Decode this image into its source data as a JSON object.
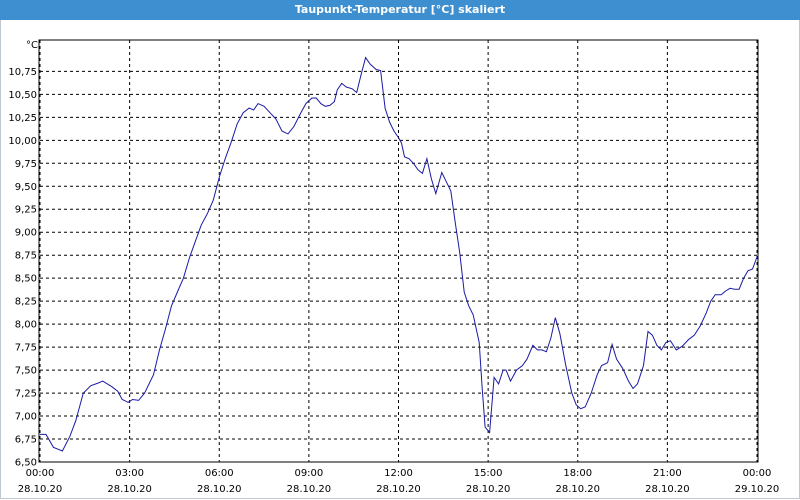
{
  "window": {
    "title": "Taupunkt-Temperatur [°C] skaliert"
  },
  "chart_data": {
    "type": "line",
    "ylabel": "°C",
    "ylim": [
      6.5,
      10.95
    ],
    "xlim_hours": [
      0,
      24
    ],
    "grid": true,
    "line_color": "#1a1aa6",
    "y_ticks": [
      "6,50",
      "6,75",
      "7,00",
      "7,25",
      "7,50",
      "7,75",
      "8,00",
      "8,25",
      "8,50",
      "8,75",
      "9,00",
      "9,25",
      "9,50",
      "9,75",
      "10,00",
      "10,25",
      "10,50",
      "10,75"
    ],
    "x_ticks": [
      {
        "time": "00:00",
        "date": "28.10.20"
      },
      {
        "time": "03:00",
        "date": "28.10.20"
      },
      {
        "time": "06:00",
        "date": "28.10.20"
      },
      {
        "time": "09:00",
        "date": "28.10.20"
      },
      {
        "time": "12:00",
        "date": "28.10.20"
      },
      {
        "time": "15:00",
        "date": "28.10.20"
      },
      {
        "time": "18:00",
        "date": "28.10.20"
      },
      {
        "time": "21:00",
        "date": "28.10.20"
      },
      {
        "time": "00:00",
        "date": "29.10.20"
      }
    ],
    "series": [
      {
        "points": [
          [
            0.0,
            6.8
          ],
          [
            0.2,
            6.8
          ],
          [
            0.45,
            6.66
          ],
          [
            0.75,
            6.62
          ],
          [
            1.0,
            6.78
          ],
          [
            1.2,
            6.95
          ],
          [
            1.45,
            7.25
          ],
          [
            1.7,
            7.33
          ],
          [
            1.95,
            7.36
          ],
          [
            2.1,
            7.38
          ],
          [
            2.4,
            7.32
          ],
          [
            2.6,
            7.27
          ],
          [
            2.75,
            7.18
          ],
          [
            2.95,
            7.15
          ],
          [
            3.1,
            7.18
          ],
          [
            3.3,
            7.17
          ],
          [
            3.5,
            7.25
          ],
          [
            3.8,
            7.45
          ],
          [
            4.0,
            7.72
          ],
          [
            4.2,
            7.95
          ],
          [
            4.4,
            8.2
          ],
          [
            4.6,
            8.35
          ],
          [
            4.8,
            8.5
          ],
          [
            5.0,
            8.72
          ],
          [
            5.2,
            8.9
          ],
          [
            5.4,
            9.08
          ],
          [
            5.6,
            9.2
          ],
          [
            5.8,
            9.35
          ],
          [
            6.0,
            9.6
          ],
          [
            6.2,
            9.8
          ],
          [
            6.4,
            9.98
          ],
          [
            6.6,
            10.18
          ],
          [
            6.8,
            10.3
          ],
          [
            7.0,
            10.35
          ],
          [
            7.15,
            10.33
          ],
          [
            7.3,
            10.4
          ],
          [
            7.5,
            10.37
          ],
          [
            7.7,
            10.3
          ],
          [
            7.9,
            10.23
          ],
          [
            8.1,
            10.1
          ],
          [
            8.3,
            10.07
          ],
          [
            8.5,
            10.15
          ],
          [
            8.7,
            10.28
          ],
          [
            8.9,
            10.4
          ],
          [
            9.1,
            10.46
          ],
          [
            9.25,
            10.46
          ],
          [
            9.4,
            10.4
          ],
          [
            9.55,
            10.37
          ],
          [
            9.7,
            10.38
          ],
          [
            9.85,
            10.42
          ],
          [
            9.95,
            10.55
          ],
          [
            10.1,
            10.62
          ],
          [
            10.25,
            10.58
          ],
          [
            10.45,
            10.56
          ],
          [
            10.6,
            10.52
          ],
          [
            10.75,
            10.72
          ],
          [
            10.9,
            10.9
          ],
          [
            11.05,
            10.83
          ],
          [
            11.25,
            10.77
          ],
          [
            11.4,
            10.76
          ],
          [
            11.55,
            10.35
          ],
          [
            11.7,
            10.2
          ],
          [
            11.85,
            10.1
          ],
          [
            12.0,
            10.03
          ],
          [
            12.1,
            9.97
          ],
          [
            12.2,
            9.82
          ],
          [
            12.35,
            9.8
          ],
          [
            12.5,
            9.75
          ],
          [
            12.65,
            9.68
          ],
          [
            12.8,
            9.64
          ],
          [
            12.95,
            9.8
          ],
          [
            13.1,
            9.58
          ],
          [
            13.25,
            9.42
          ],
          [
            13.45,
            9.65
          ],
          [
            13.6,
            9.55
          ],
          [
            13.75,
            9.45
          ],
          [
            13.9,
            9.1
          ],
          [
            14.05,
            8.78
          ],
          [
            14.2,
            8.35
          ],
          [
            14.35,
            8.2
          ],
          [
            14.5,
            8.1
          ],
          [
            14.7,
            7.8
          ],
          [
            14.8,
            7.3
          ],
          [
            14.9,
            6.88
          ],
          [
            15.05,
            6.82
          ],
          [
            15.2,
            7.42
          ],
          [
            15.35,
            7.35
          ],
          [
            15.5,
            7.5
          ],
          [
            15.6,
            7.5
          ],
          [
            15.75,
            7.38
          ],
          [
            15.95,
            7.5
          ],
          [
            16.15,
            7.55
          ],
          [
            16.3,
            7.62
          ],
          [
            16.5,
            7.77
          ],
          [
            16.65,
            7.72
          ],
          [
            16.8,
            7.72
          ],
          [
            16.95,
            7.7
          ],
          [
            17.1,
            7.85
          ],
          [
            17.25,
            8.07
          ],
          [
            17.4,
            7.9
          ],
          [
            17.6,
            7.55
          ],
          [
            17.8,
            7.25
          ],
          [
            17.95,
            7.12
          ],
          [
            18.1,
            7.08
          ],
          [
            18.25,
            7.1
          ],
          [
            18.45,
            7.25
          ],
          [
            18.65,
            7.45
          ],
          [
            18.8,
            7.55
          ],
          [
            19.0,
            7.58
          ],
          [
            19.15,
            7.78
          ],
          [
            19.3,
            7.62
          ],
          [
            19.5,
            7.52
          ],
          [
            19.7,
            7.38
          ],
          [
            19.85,
            7.3
          ],
          [
            20.0,
            7.35
          ],
          [
            20.2,
            7.55
          ],
          [
            20.35,
            7.92
          ],
          [
            20.5,
            7.88
          ],
          [
            20.65,
            7.77
          ],
          [
            20.8,
            7.72
          ],
          [
            20.95,
            7.8
          ],
          [
            21.1,
            7.82
          ],
          [
            21.3,
            7.72
          ],
          [
            21.5,
            7.76
          ],
          [
            21.7,
            7.83
          ],
          [
            21.9,
            7.88
          ],
          [
            22.1,
            7.98
          ],
          [
            22.3,
            8.12
          ],
          [
            22.45,
            8.25
          ],
          [
            22.6,
            8.32
          ],
          [
            22.8,
            8.32
          ],
          [
            22.95,
            8.36
          ],
          [
            23.1,
            8.39
          ],
          [
            23.25,
            8.38
          ],
          [
            23.4,
            8.38
          ],
          [
            23.55,
            8.5
          ],
          [
            23.7,
            8.58
          ],
          [
            23.85,
            8.6
          ],
          [
            24.0,
            8.73
          ]
        ]
      }
    ]
  }
}
